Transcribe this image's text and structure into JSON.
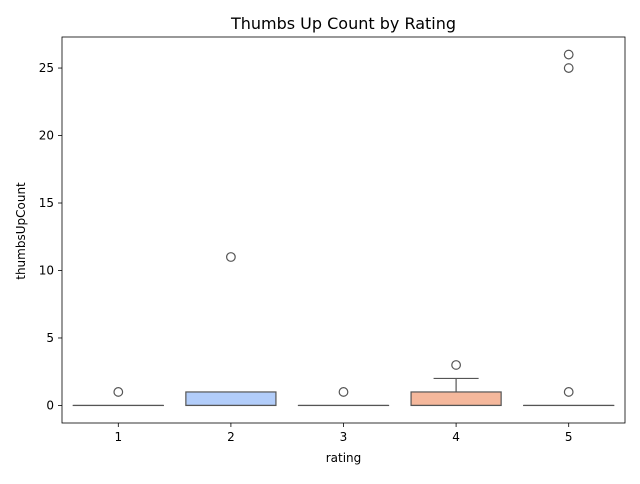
{
  "chart_data": {
    "type": "box",
    "title": "Thumbs Up Count by Rating",
    "xlabel": "rating",
    "ylabel": "thumbsUpCount",
    "categories": [
      "1",
      "2",
      "3",
      "4",
      "5"
    ],
    "ylim": [
      -1.3,
      27.3
    ],
    "yticks": [
      0,
      5,
      10,
      15,
      20,
      25
    ],
    "grid": false,
    "boxes": [
      {
        "category": "1",
        "q1": 0,
        "median": 0,
        "q3": 0,
        "whisker_low": 0,
        "whisker_high": 0,
        "outliers": [
          1
        ],
        "color": "#9db8ef"
      },
      {
        "category": "2",
        "q1": 0,
        "median": 0,
        "q3": 1,
        "whisker_low": 0,
        "whisker_high": 1,
        "outliers": [
          11
        ],
        "color": "#b2cdfa"
      },
      {
        "category": "3",
        "q1": 0,
        "median": 0,
        "q3": 0,
        "whisker_low": 0,
        "whisker_high": 0,
        "outliers": [
          1
        ],
        "color": "#dcdcdc"
      },
      {
        "category": "4",
        "q1": 0,
        "median": 0,
        "q3": 1,
        "whisker_low": 0,
        "whisker_high": 2,
        "outliers": [
          3
        ],
        "color": "#f5b89c"
      },
      {
        "category": "5",
        "q1": 0,
        "median": 0,
        "q3": 0,
        "whisker_low": 0,
        "whisker_high": 0,
        "outliers": [
          1,
          25,
          26
        ],
        "color": "#e3826c"
      }
    ]
  }
}
